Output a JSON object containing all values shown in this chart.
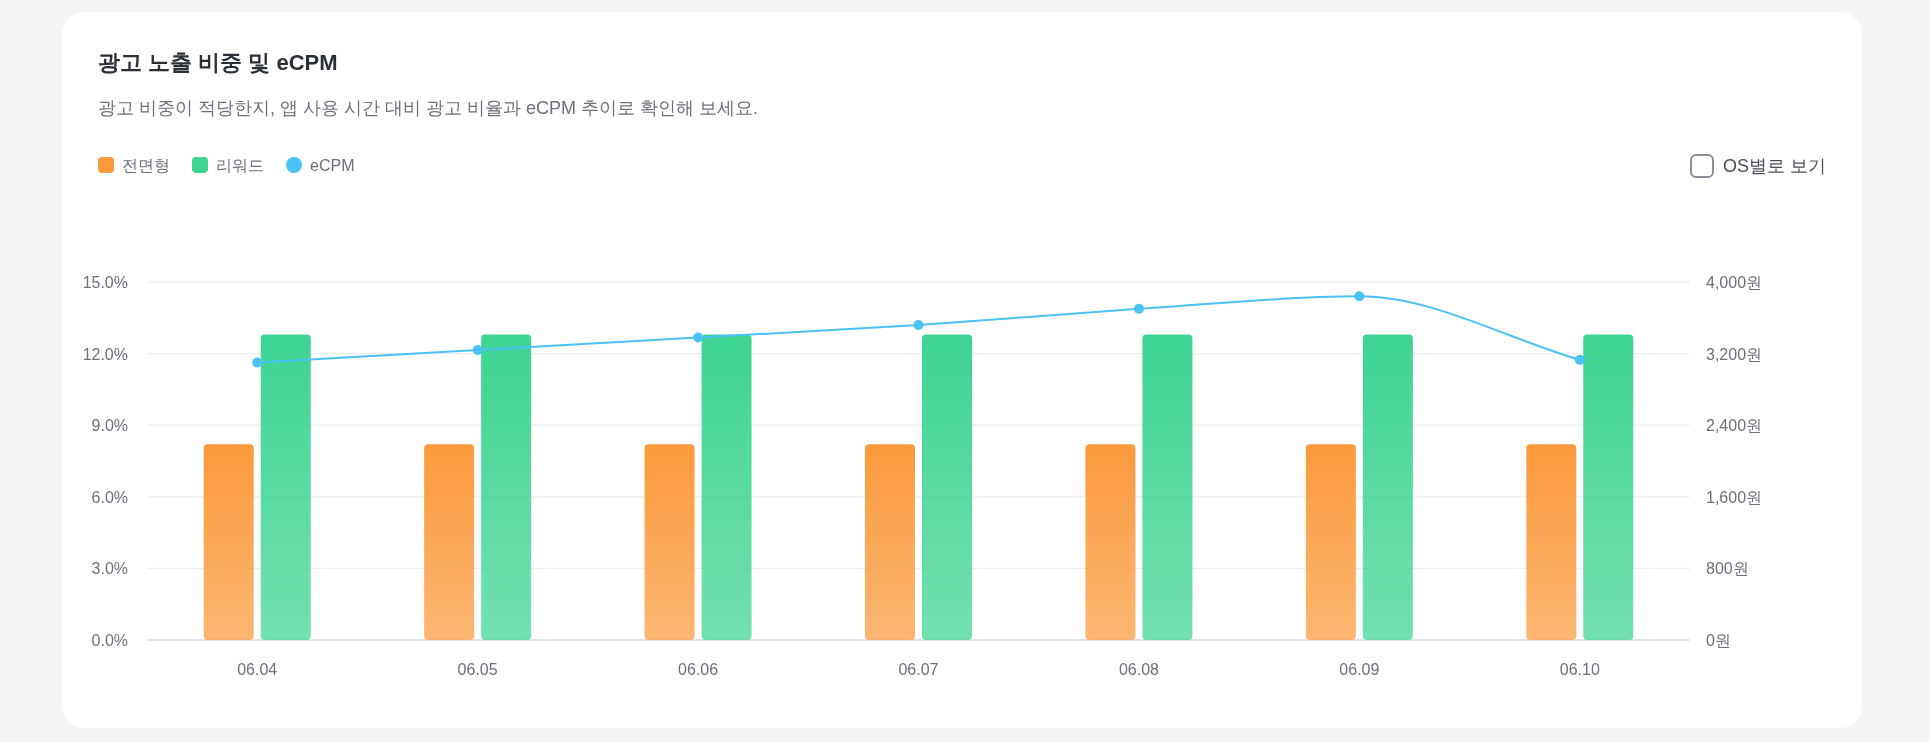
{
  "chart_data": {
    "type": "bar",
    "title": "광고 노출 비중 및 eCPM",
    "subtitle": "광고 비중이 적당한지, 앱 사용 시간 대비 광고 비율과 eCPM 추이로 확인해 보세요.",
    "annotations": [
      "OS별로 보기"
    ],
    "categories": [
      "06.04",
      "06.05",
      "06.06",
      "06.07",
      "06.08",
      "06.09",
      "06.10"
    ],
    "series": [
      {
        "name": "전면형",
        "color": "#fb9a3c",
        "values": [
          8.2,
          8.2,
          8.2,
          8.2,
          8.2,
          8.2,
          8.2
        ]
      },
      {
        "name": "리워드",
        "color": "#3ed493",
        "values": [
          12.8,
          12.8,
          12.8,
          12.8,
          12.8,
          12.8,
          12.8
        ]
      },
      {
        "name": "eCPM",
        "type": "line",
        "axis": "y2",
        "marker": "circle",
        "color": "#4bc2f5",
        "values": [
          3100,
          3240,
          3380,
          3520,
          3700,
          3840,
          3130
        ]
      }
    ],
    "ylim": [
      0,
      15
    ],
    "yticks": [
      {
        "value": 0,
        "label": "0.0%"
      },
      {
        "value": 3,
        "label": "3.0%"
      },
      {
        "value": 6,
        "label": "6.0%"
      },
      {
        "value": 9,
        "label": "9.0%"
      },
      {
        "value": 12,
        "label": "12.0%"
      },
      {
        "value": 15,
        "label": "15.0%"
      }
    ],
    "y2lim": [
      0,
      4000
    ],
    "y2ticks": [
      {
        "value": 0,
        "label": "0원"
      },
      {
        "value": 800,
        "label": "800원"
      },
      {
        "value": 1600,
        "label": "1,600원"
      },
      {
        "value": 2400,
        "label": "2,400원"
      },
      {
        "value": 3200,
        "label": "3,200원"
      },
      {
        "value": 4000,
        "label": "4,000원"
      }
    ],
    "grid": "y",
    "legend": "top left"
  }
}
